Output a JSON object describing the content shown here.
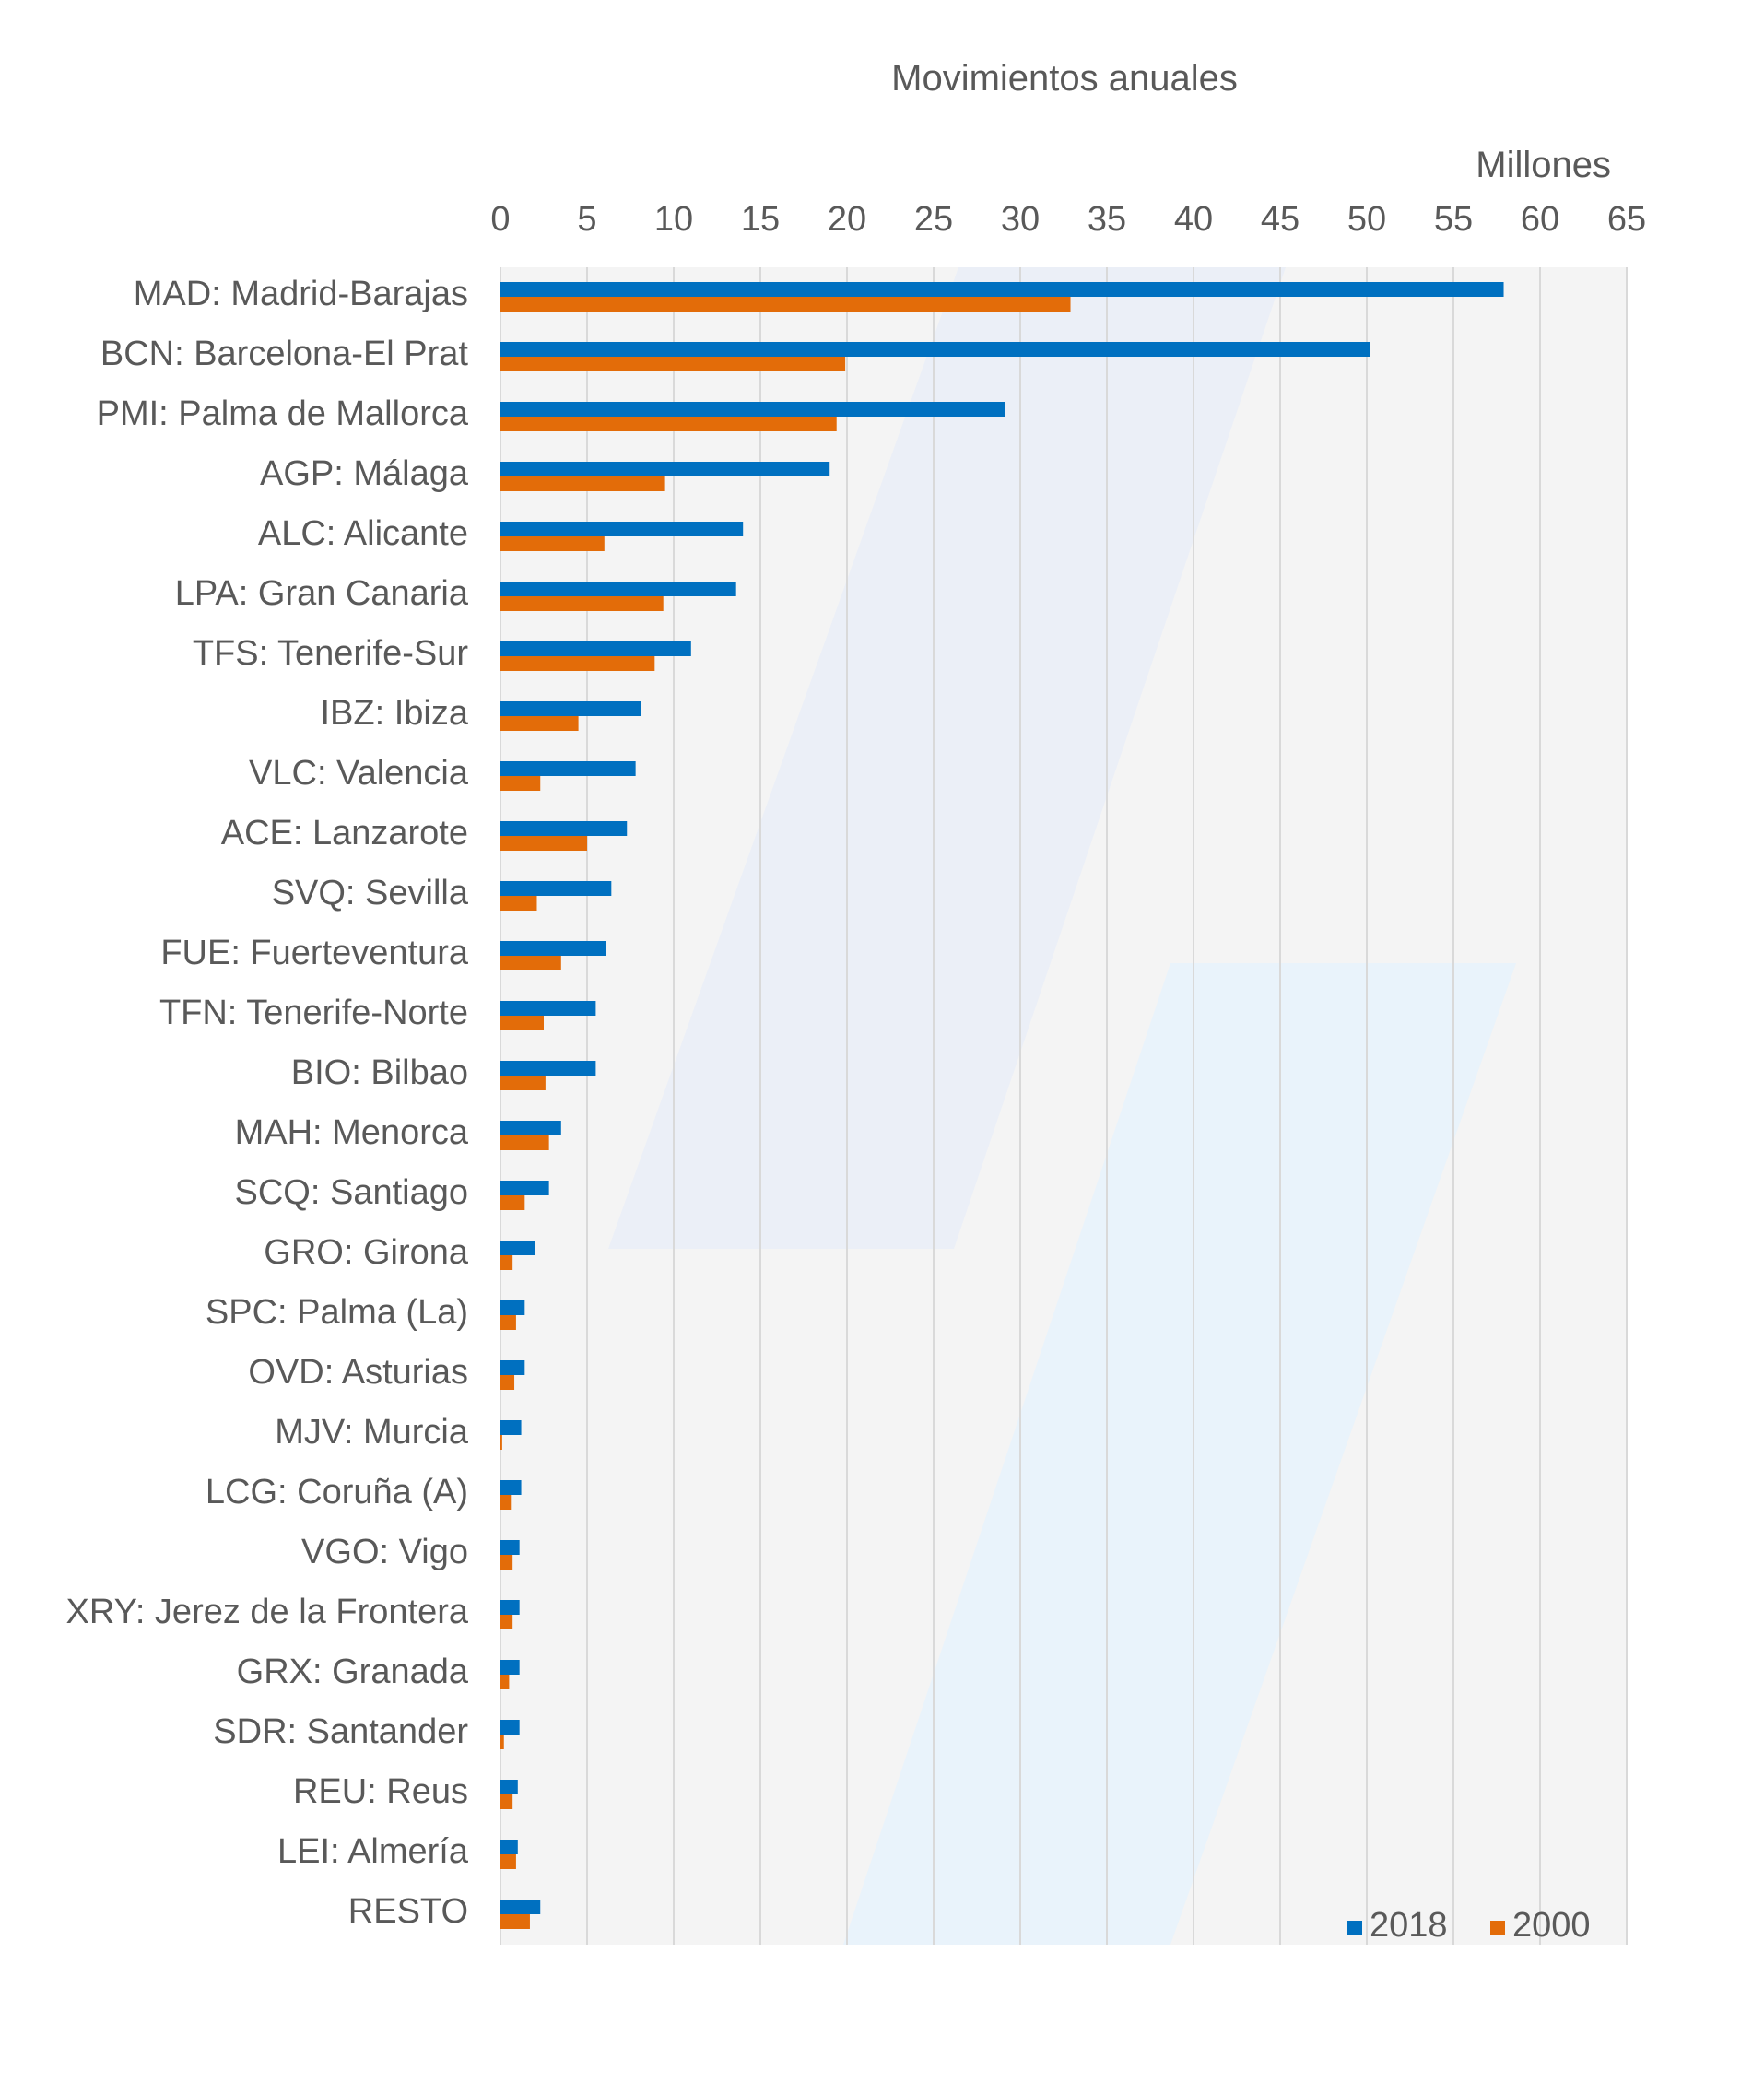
{
  "chart_data": {
    "type": "bar",
    "orientation": "horizontal",
    "title": "Movimientos anuales",
    "unit_label": "Millones",
    "xlim": [
      0,
      65
    ],
    "x_ticks": [
      0,
      5,
      10,
      15,
      20,
      25,
      30,
      35,
      40,
      45,
      50,
      55,
      60,
      65
    ],
    "x_tick_labels": [
      "0",
      "5",
      "10",
      "15",
      "20",
      "25",
      "30",
      "35",
      "40",
      "45",
      "50",
      "55",
      "60",
      "65"
    ],
    "axis_position": "top",
    "grid": true,
    "legend_position": "bottom-right",
    "categories": [
      "MAD: Madrid-Barajas",
      "BCN: Barcelona-El Prat",
      "PMI: Palma de Mallorca",
      "AGP: Málaga",
      "ALC: Alicante",
      "LPA: Gran Canaria",
      "TFS: Tenerife-Sur",
      "IBZ: Ibiza",
      "VLC: Valencia",
      "ACE: Lanzarote",
      "SVQ: Sevilla",
      "FUE: Fuerteventura",
      "TFN: Tenerife-Norte",
      "BIO: Bilbao",
      "MAH: Menorca",
      "SCQ: Santiago",
      "GRO: Girona",
      "SPC: Palma (La)",
      "OVD: Asturias",
      "MJV: Murcia",
      "LCG: Coruña (A)",
      "VGO: Vigo",
      "XRY: Jerez de la Frontera",
      "GRX: Granada",
      "SDR: Santander",
      "REU: Reus",
      "LEI: Almería",
      "RESTO"
    ],
    "series": [
      {
        "name": "2018",
        "color": "#0070C0",
        "values": [
          57.9,
          50.2,
          29.1,
          19.0,
          14.0,
          13.6,
          11.0,
          8.1,
          7.8,
          7.3,
          6.4,
          6.1,
          5.5,
          5.5,
          3.5,
          2.8,
          2.0,
          1.4,
          1.4,
          1.2,
          1.2,
          1.1,
          1.1,
          1.1,
          1.1,
          1.0,
          1.0,
          2.3
        ]
      },
      {
        "name": "2000",
        "color": "#E36C09",
        "values": [
          32.9,
          19.9,
          19.4,
          9.5,
          6.0,
          9.4,
          8.9,
          4.5,
          2.3,
          5.0,
          2.1,
          3.5,
          2.5,
          2.6,
          2.8,
          1.4,
          0.7,
          0.9,
          0.8,
          0.1,
          0.6,
          0.7,
          0.7,
          0.5,
          0.2,
          0.7,
          0.9,
          1.7
        ]
      }
    ]
  }
}
